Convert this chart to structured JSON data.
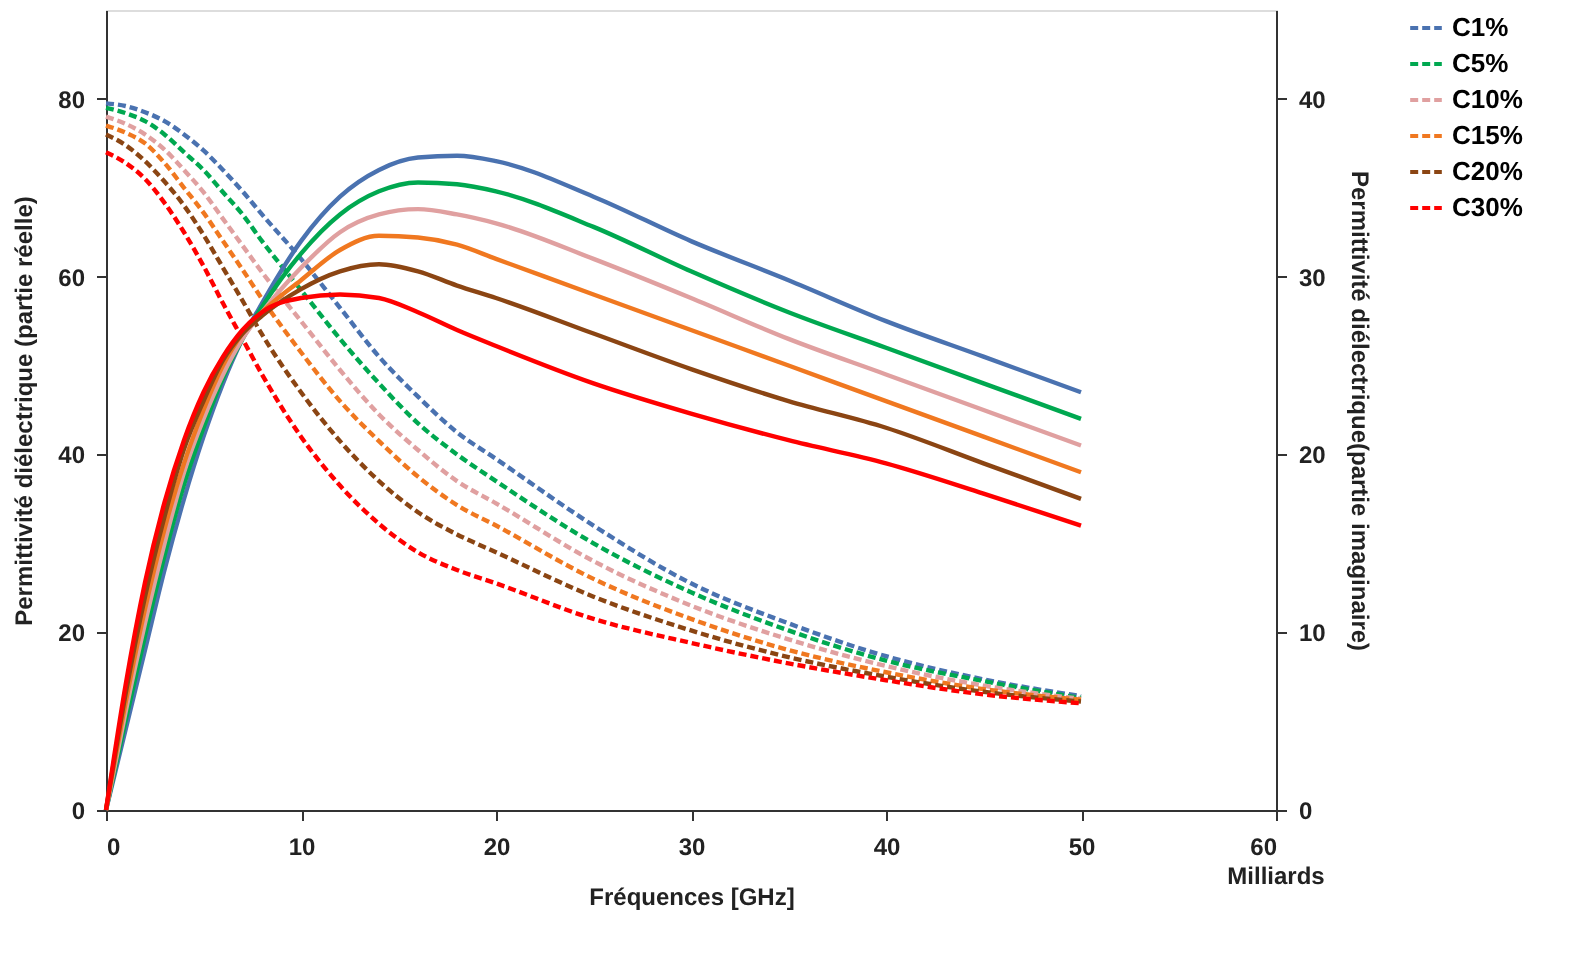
{
  "chart_data": {
    "type": "line",
    "xlabel": "Fréquences [GHz]",
    "ylabel": "Permittivité diélectrique (partie réelle)",
    "y2label": "Permittivité diélectrique(partie imaginaire)",
    "x": [
      0,
      1,
      2,
      3,
      4,
      5,
      6,
      7,
      8,
      10,
      12,
      14,
      16,
      18,
      20,
      25,
      30,
      35,
      40,
      45,
      50
    ],
    "xlim": [
      0,
      60
    ],
    "xticks": [
      0,
      10,
      20,
      30,
      40,
      50,
      60
    ],
    "ylim": [
      0,
      90
    ],
    "yticks": [
      0,
      20,
      40,
      60,
      80
    ],
    "y2lim": [
      0,
      45
    ],
    "y2ticks": [
      0,
      10,
      20,
      30,
      40
    ],
    "grid": false,
    "legend": "right",
    "marker": "none",
    "annotations": [
      "Milliards"
    ],
    "series": [
      {
        "name": "C1%",
        "color": "#4a72b0",
        "line_style": "dashed",
        "values": [
          79.5,
          79.2,
          78.5,
          77.5,
          76,
          74.2,
          72,
          69.6,
          67,
          62,
          56.5,
          51,
          46.5,
          42.5,
          39.5,
          32,
          25.5,
          21,
          17.3,
          14.7,
          12.8
        ]
      },
      {
        "name": "C5%",
        "color": "#00a850",
        "line_style": "dashed",
        "values": [
          79,
          78.4,
          77.5,
          76,
          74,
          72,
          69.5,
          67,
          64,
          58.5,
          53,
          48,
          43.5,
          40,
          37,
          30,
          24.5,
          20.2,
          16.8,
          14.5,
          12.6
        ]
      },
      {
        "name": "C10%",
        "color": "#e0a0a0",
        "line_style": "dashed",
        "values": [
          78,
          77.2,
          76,
          74.3,
          72,
          69.5,
          66.5,
          63.5,
          60.5,
          55,
          49.5,
          44.5,
          40.5,
          37,
          34.5,
          28,
          23,
          19.2,
          16.2,
          14,
          12.5
        ]
      },
      {
        "name": "C15%",
        "color": "#f07820",
        "line_style": "dashed",
        "values": [
          77,
          76.2,
          75,
          72.8,
          70,
          67.2,
          64,
          60.8,
          57.5,
          51.5,
          46,
          41.5,
          37.5,
          34.3,
          32,
          26,
          21.5,
          18,
          15.5,
          13.6,
          12.4
        ]
      },
      {
        "name": "C20%",
        "color": "#8b4513",
        "line_style": "dashed",
        "values": [
          76,
          74.8,
          73,
          70.7,
          68,
          64.7,
          61,
          57.3,
          53.5,
          47,
          41.5,
          37,
          33.5,
          31,
          29,
          24,
          20.2,
          17.2,
          15,
          13.3,
          12.2
        ]
      },
      {
        "name": "C30%",
        "color": "#ff0000",
        "line_style": "dashed",
        "values": [
          74,
          72.8,
          71,
          68.3,
          65,
          61.2,
          57,
          53,
          49,
          42,
          36.5,
          32.2,
          29,
          27,
          25.5,
          21.5,
          18.8,
          16.5,
          14.6,
          13,
          12
        ]
      },
      {
        "color": "#4a72b0",
        "line_style": "solid",
        "axis": "y2",
        "values": [
          0,
          4.5,
          9,
          13.5,
          17.5,
          21,
          24,
          26.5,
          28.5,
          32,
          34.5,
          36,
          36.7,
          36.8,
          36.5,
          34.5,
          32,
          29.8,
          27.5,
          25.5,
          23.5
        ]
      },
      {
        "color": "#00a850",
        "line_style": "solid",
        "axis": "y2",
        "values": [
          0,
          5,
          9.8,
          14.3,
          18.3,
          21.5,
          24.3,
          26.5,
          28.3,
          31.3,
          33.5,
          34.8,
          35.3,
          35.2,
          34.8,
          32.8,
          30.3,
          28,
          26,
          24,
          22
        ]
      },
      {
        "color": "#e0a0a0",
        "line_style": "solid",
        "axis": "y2",
        "values": [
          0,
          5.5,
          10.5,
          15,
          19,
          22,
          24.5,
          26.5,
          28,
          30.5,
          32.5,
          33.5,
          33.8,
          33.5,
          33,
          31,
          28.8,
          26.5,
          24.5,
          22.5,
          20.5
        ]
      },
      {
        "color": "#f07820",
        "line_style": "solid",
        "axis": "y2",
        "values": [
          0,
          6,
          11.3,
          15.8,
          19.5,
          22.5,
          25,
          26.8,
          28,
          29.8,
          31.5,
          32.3,
          32.2,
          31.8,
          31,
          29,
          27,
          25,
          23,
          21,
          19
        ]
      },
      {
        "color": "#8b4513",
        "line_style": "solid",
        "axis": "y2",
        "values": [
          0,
          6.5,
          12,
          16.5,
          20.3,
          23,
          25.3,
          26.8,
          27.8,
          29.3,
          30.3,
          30.7,
          30.3,
          29.5,
          28.8,
          26.8,
          24.8,
          23,
          21.5,
          19.5,
          17.5
        ]
      },
      {
        "color": "#ff0000",
        "line_style": "solid",
        "axis": "y2",
        "values": [
          0,
          7,
          12.8,
          17.3,
          20.8,
          23.5,
          25.5,
          27,
          28,
          28.8,
          29,
          28.8,
          28,
          27,
          26.1,
          24,
          22.3,
          20.8,
          19.5,
          17.8,
          16
        ]
      }
    ]
  }
}
